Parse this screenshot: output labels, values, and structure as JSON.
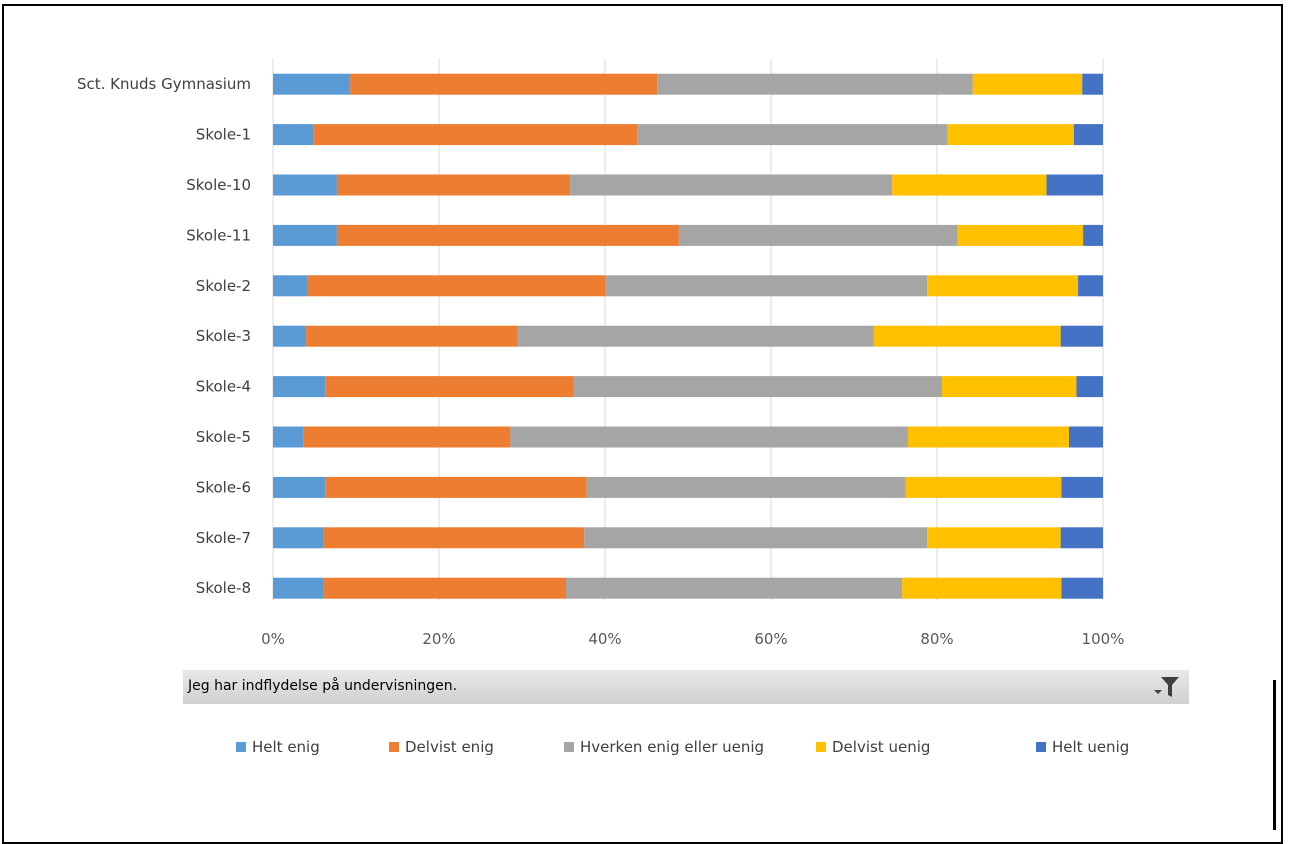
{
  "colors": {
    "helt_enig": "#5B9BD5",
    "delvist_enig": "#ED7D31",
    "hverken": "#A5A5A5",
    "delvist_uenig": "#FFC000",
    "helt_uenig": "#4472C4",
    "gridline": "#D9D9D9",
    "filter_bar": "#D9D9D9"
  },
  "filter": {
    "label": "Jeg har indflydelse på undervisningen.",
    "icon": "filter-icon"
  },
  "chart_data": {
    "type": "bar",
    "orientation": "horizontal",
    "stacked": "percent",
    "categories": [
      "Sct. Knuds Gymnasium",
      "Skole-1",
      "Skole-10",
      "Skole-11",
      "Skole-2",
      "Skole-3",
      "Skole-4",
      "Skole-5",
      "Skole-6",
      "Skole-7",
      "Skole-8"
    ],
    "series": [
      {
        "name": "Helt enig",
        "color": "#5B9BD5",
        "values": [
          9.3,
          4.9,
          7.7,
          7.7,
          4.2,
          4.0,
          6.3,
          3.7,
          6.3,
          6.1,
          6.1
        ]
      },
      {
        "name": "Delvist enig",
        "color": "#ED7D31",
        "values": [
          37.0,
          39.0,
          28.1,
          41.2,
          35.8,
          25.5,
          29.9,
          24.9,
          31.5,
          31.4,
          29.2
        ]
      },
      {
        "name": "Hverken enig eller uenig",
        "color": "#A5A5A5",
        "values": [
          38.0,
          37.4,
          38.8,
          33.6,
          38.8,
          42.9,
          44.4,
          47.9,
          38.4,
          41.3,
          40.5
        ]
      },
      {
        "name": "Delvist uenig",
        "color": "#FFC000",
        "values": [
          13.2,
          15.2,
          18.6,
          15.1,
          18.2,
          22.5,
          16.2,
          19.4,
          18.8,
          16.1,
          19.2
        ]
      },
      {
        "name": "Helt uenig",
        "color": "#4472C4",
        "values": [
          2.5,
          3.5,
          6.8,
          2.4,
          3.0,
          5.1,
          3.2,
          4.1,
          5.0,
          5.1,
          5.0
        ]
      }
    ],
    "x_ticks": [
      "0%",
      "20%",
      "40%",
      "60%",
      "80%",
      "100%"
    ],
    "xlim": [
      0,
      100
    ],
    "grid": "vertical",
    "legend": "bottom"
  }
}
